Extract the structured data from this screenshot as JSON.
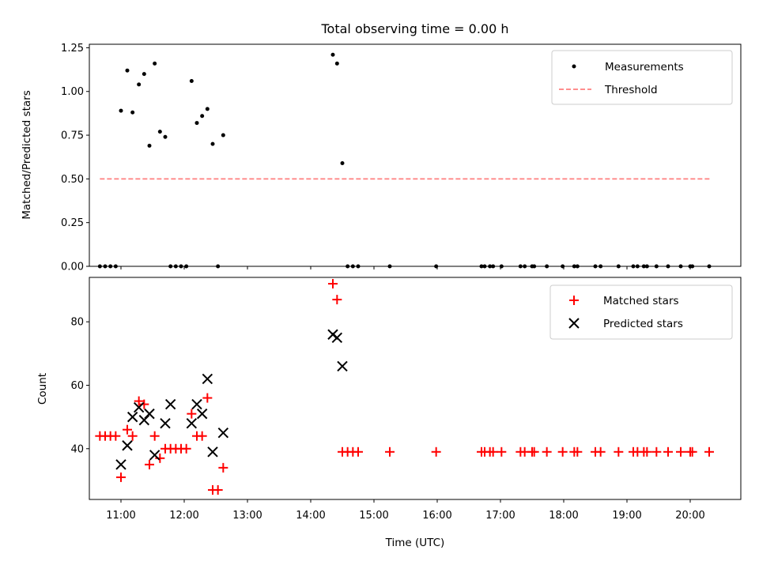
{
  "title": "Total observing time = 0.00 h",
  "xlabel": "Time (UTC)",
  "top_ylabel": "Matched/Predicted stars",
  "bottom_ylabel": "Count",
  "legend_top": [
    "Measurements",
    "Threshold"
  ],
  "legend_bottom": [
    "Matched stars",
    "Predicted stars"
  ],
  "colors": {
    "measurements": "#000000",
    "threshold": "#ff7f7f",
    "matched": "#ff0000",
    "predicted": "#000000"
  },
  "chart_data": [
    {
      "type": "scatter",
      "title": "Total observing time = 0.00 h",
      "ylabel": "Matched/Predicted stars",
      "xlim": [
        "10:30",
        "20:48"
      ],
      "ylim": [
        0,
        1.27
      ],
      "yticks": [
        "0.00",
        "0.25",
        "0.50",
        "0.75",
        "1.00",
        "1.25"
      ],
      "legend_position": "top-right",
      "series": [
        {
          "name": "Measurements",
          "x": [
            "10:40",
            "10:45",
            "10:50",
            "10:55",
            "11:00",
            "11:06",
            "11:11",
            "11:17",
            "11:22",
            "11:27",
            "11:32",
            "11:37",
            "11:42",
            "11:47",
            "11:52",
            "11:57",
            "12:02",
            "12:07",
            "12:12",
            "12:17",
            "12:22",
            "12:27",
            "12:32",
            "12:37",
            "14:21",
            "14:25",
            "14:30",
            "14:35",
            "14:40",
            "14:45",
            "15:15",
            "15:59",
            "16:42",
            "16:45",
            "16:50",
            "16:53",
            "17:01",
            "17:19",
            "17:23",
            "17:30",
            "17:32",
            "17:44",
            "17:59",
            "18:10",
            "18:13",
            "18:30",
            "18:35",
            "18:52",
            "19:06",
            "19:10",
            "19:16",
            "19:19",
            "19:28",
            "19:39",
            "19:51",
            "20:00",
            "20:02",
            "20:18"
          ],
          "y": [
            0,
            0,
            0,
            0,
            0.89,
            1.12,
            0.88,
            1.04,
            1.1,
            0.69,
            1.16,
            0.77,
            0.74,
            0,
            0,
            0,
            0,
            1.06,
            0.82,
            0.86,
            0.9,
            0.7,
            0,
            0.75,
            1.21,
            1.16,
            0.59,
            0,
            0,
            0,
            0,
            0,
            0,
            0,
            0,
            0,
            0,
            0,
            0,
            0,
            0,
            0,
            0,
            0,
            0,
            0,
            0,
            0,
            0,
            0,
            0,
            0,
            0,
            0,
            0,
            0,
            0,
            0
          ]
        },
        {
          "name": "Threshold",
          "x": [
            "10:40",
            "20:20"
          ],
          "y": [
            0.5,
            0.5
          ]
        }
      ]
    },
    {
      "type": "scatter",
      "xlabel": "Time (UTC)",
      "ylabel": "Count",
      "xlim": [
        "10:30",
        "20:48"
      ],
      "ylim": [
        24,
        94
      ],
      "yticks": [
        "40",
        "60",
        "80"
      ],
      "xticks": [
        "11:00",
        "12:00",
        "13:00",
        "14:00",
        "15:00",
        "16:00",
        "17:00",
        "18:00",
        "19:00",
        "20:00"
      ],
      "legend_position": "top-right",
      "series": [
        {
          "name": "Matched stars",
          "x": [
            "10:40",
            "10:45",
            "10:50",
            "10:55",
            "11:00",
            "11:06",
            "11:11",
            "11:17",
            "11:22",
            "11:27",
            "11:32",
            "11:37",
            "11:42",
            "11:47",
            "11:52",
            "11:57",
            "12:02",
            "12:07",
            "12:12",
            "12:17",
            "12:22",
            "12:27",
            "12:32",
            "12:37",
            "14:21",
            "14:25",
            "14:30",
            "14:35",
            "14:40",
            "14:45",
            "15:15",
            "15:59",
            "16:42",
            "16:45",
            "16:50",
            "16:53",
            "17:01",
            "17:19",
            "17:23",
            "17:30",
            "17:32",
            "17:44",
            "17:59",
            "18:10",
            "18:13",
            "18:30",
            "18:35",
            "18:52",
            "19:06",
            "19:10",
            "19:16",
            "19:19",
            "19:28",
            "19:39",
            "19:51",
            "20:00",
            "20:02",
            "20:18"
          ],
          "y": [
            44,
            44,
            44,
            44,
            31,
            46,
            44,
            55,
            54,
            35,
            44,
            37,
            40,
            40,
            40,
            40,
            40,
            51,
            44,
            44,
            56,
            27,
            27,
            34,
            92,
            87,
            39,
            39,
            39,
            39,
            39,
            39,
            39,
            39,
            39,
            39,
            39,
            39,
            39,
            39,
            39,
            39,
            39,
            39,
            39,
            39,
            39,
            39,
            39,
            39,
            39,
            39,
            39,
            39,
            39,
            39,
            39,
            39
          ]
        },
        {
          "name": "Predicted stars",
          "x": [
            "11:00",
            "11:06",
            "11:11",
            "11:17",
            "11:22",
            "11:27",
            "11:32",
            "11:42",
            "11:47",
            "12:07",
            "12:12",
            "12:17",
            "12:22",
            "12:27",
            "12:37",
            "14:21",
            "14:25",
            "14:30"
          ],
          "y": [
            35,
            41,
            50,
            53,
            49,
            51,
            38,
            48,
            54,
            48,
            54,
            51,
            62,
            39,
            45,
            76,
            75,
            66
          ]
        }
      ]
    }
  ]
}
